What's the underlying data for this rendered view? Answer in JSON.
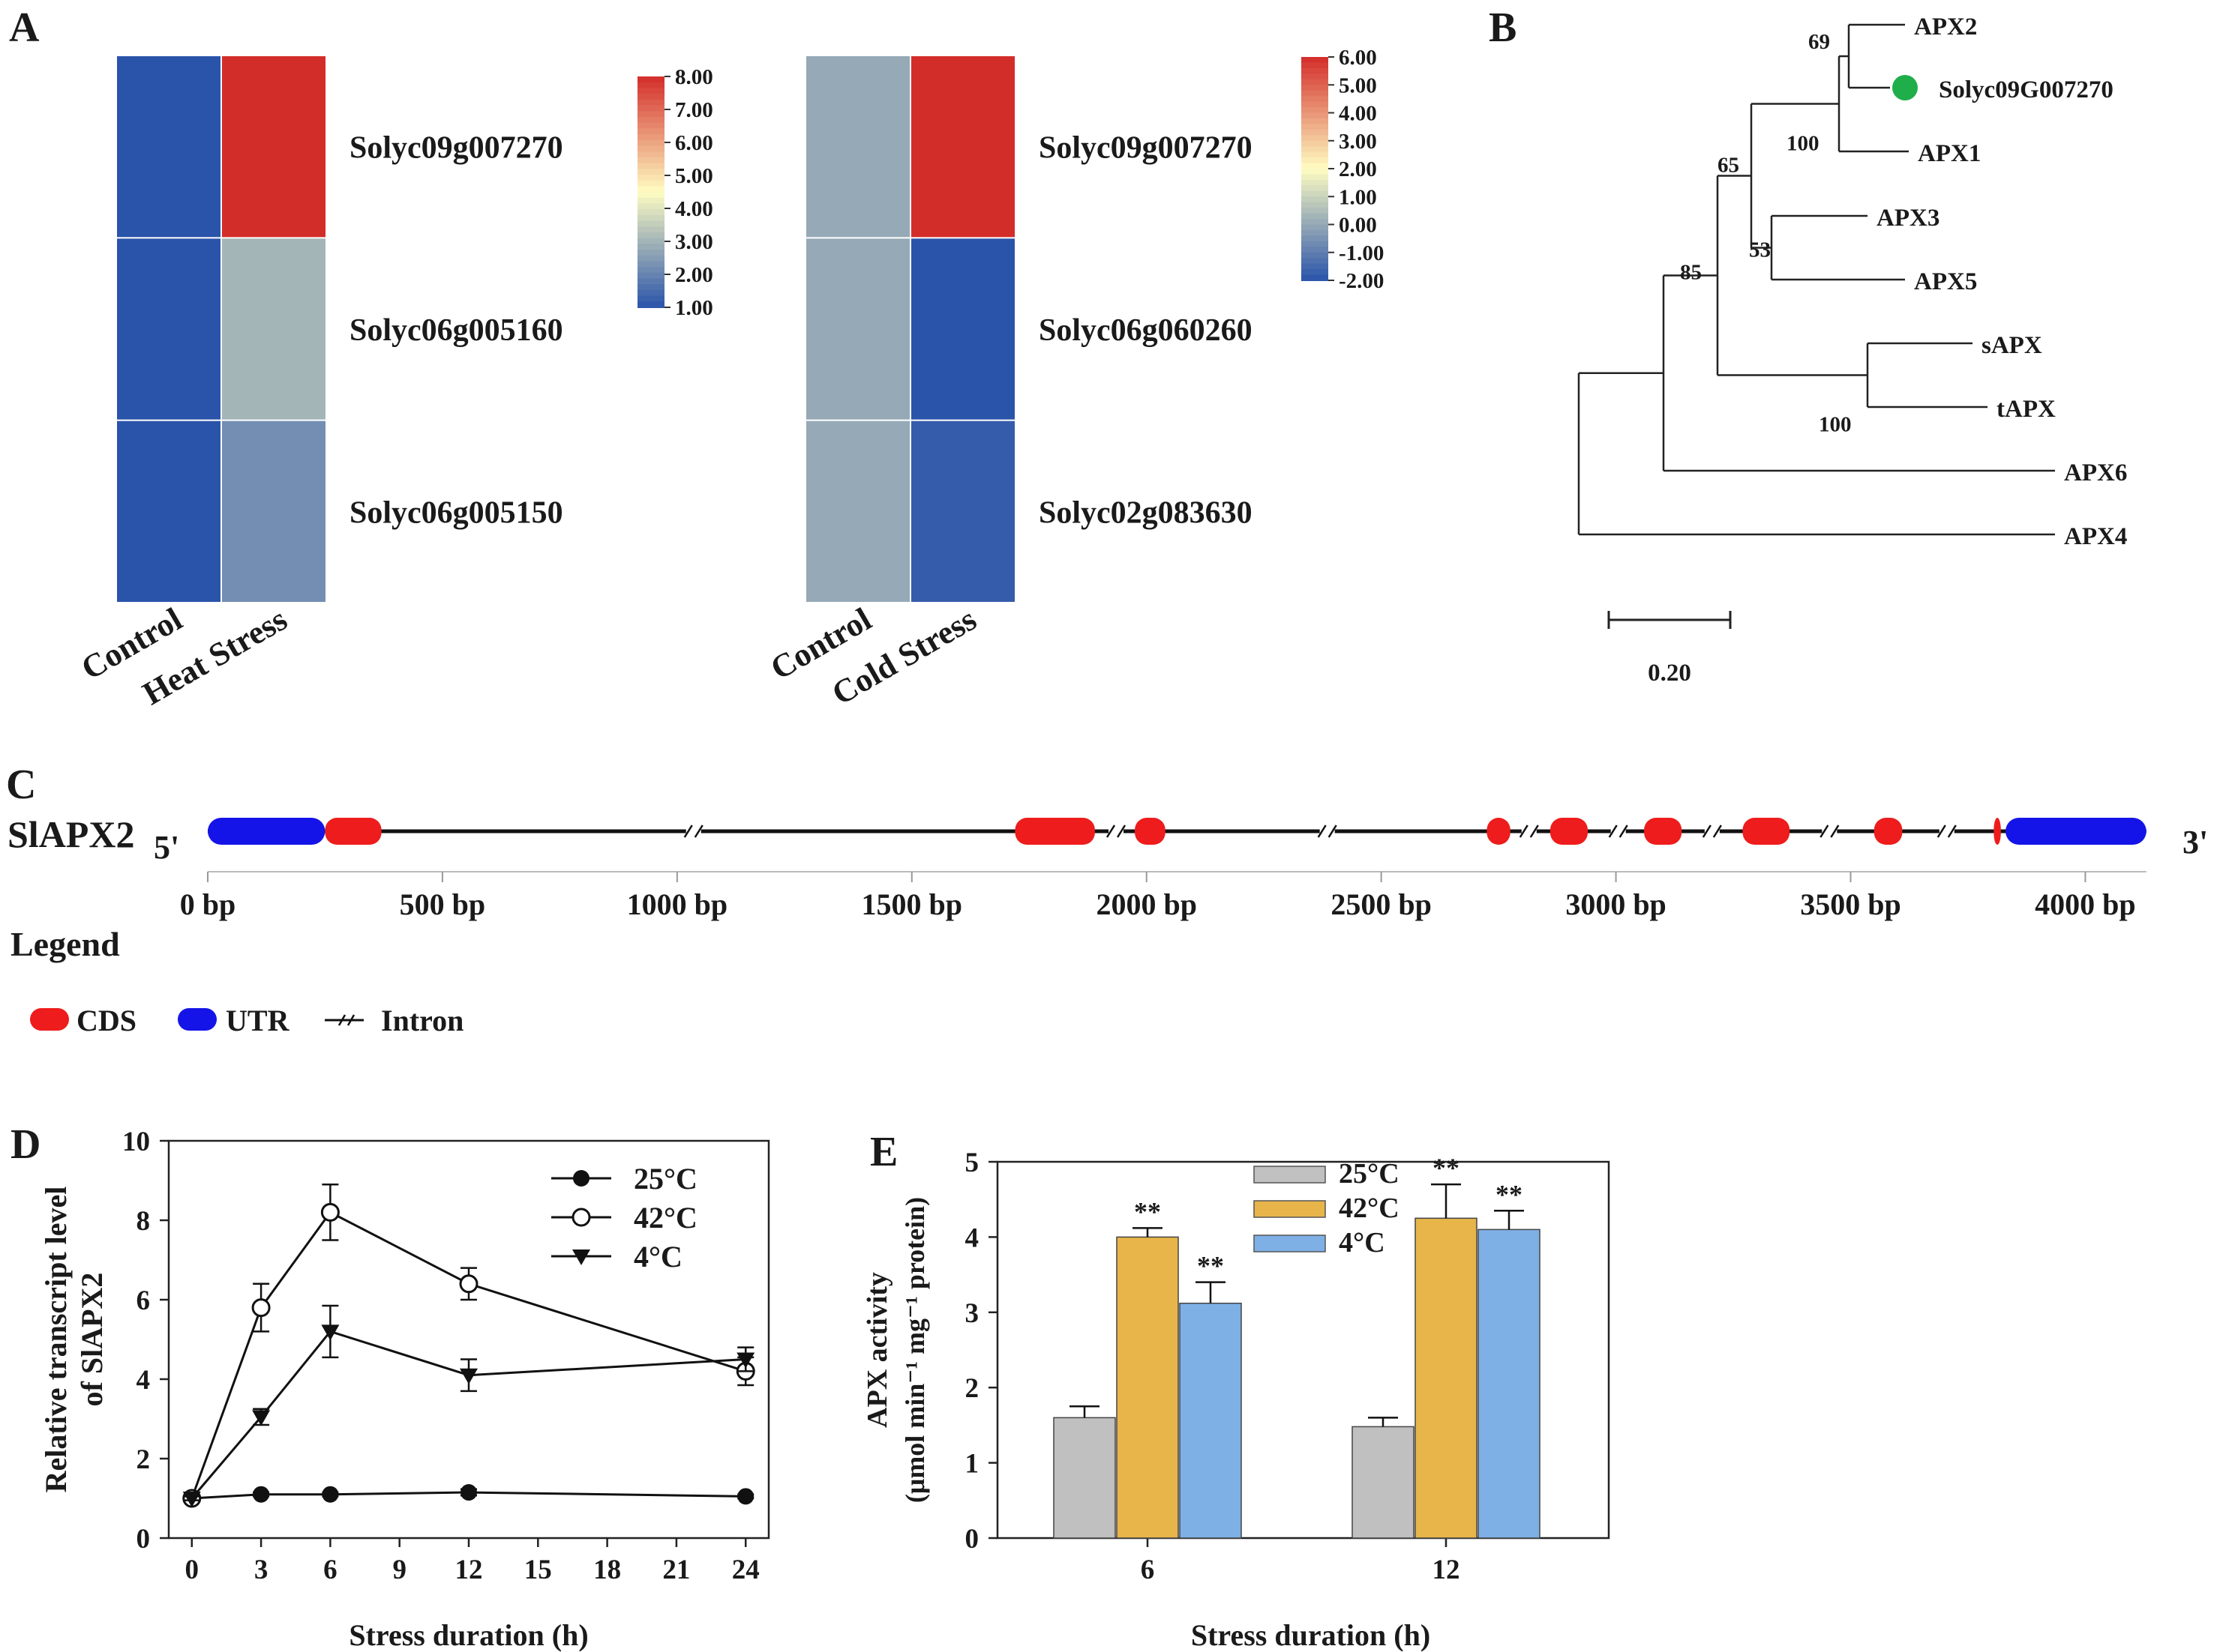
{
  "panels": {
    "A": "A",
    "B": "B",
    "C": "C",
    "D": "D",
    "E": "E"
  },
  "chart_data": [
    {
      "type": "heatmap",
      "panel": "A",
      "columns": [
        "Control",
        "Heat Stress"
      ],
      "rows": [
        "Solyc09g007270",
        "Solyc06g005160",
        "Solyc06g005150"
      ],
      "values": [
        [
          1.0,
          8.0
        ],
        [
          1.0,
          3.0
        ],
        [
          1.0,
          2.2
        ]
      ],
      "colorbar": {
        "min": 1.0,
        "max": 8.0,
        "ticks": [
          "8.00",
          "7.00",
          "6.00",
          "5.00",
          "4.00",
          "3.00",
          "2.00",
          "1.00"
        ]
      },
      "colors": {
        "low": "#2a54aa",
        "mid": "#fffdc2",
        "high": "#d32d2a"
      }
    },
    {
      "type": "heatmap",
      "panel": "A",
      "columns": [
        "Control",
        "Cold Stress"
      ],
      "rows": [
        "Solyc09g007270",
        "Solyc06g060260",
        "Solyc02g083630"
      ],
      "values": [
        [
          0.0,
          6.0
        ],
        [
          0.0,
          -2.0
        ],
        [
          0.0,
          -1.8
        ]
      ],
      "colorbar": {
        "min": -2.0,
        "max": 6.0,
        "ticks": [
          "6.00",
          "5.00",
          "4.00",
          "3.00",
          "2.00",
          "1.00",
          "0.00",
          "-1.00",
          "-2.00"
        ]
      },
      "colors": {
        "low": "#2a54aa",
        "mid": "#fffdc2",
        "high": "#d32d2a"
      }
    },
    {
      "type": "tree",
      "panel": "B",
      "leaves": [
        "APX2",
        "Solyc09G007270",
        "APX1",
        "APX3",
        "APX5",
        "sAPX",
        "tAPX",
        "APX6",
        "APX4"
      ],
      "bootstrap": [
        "69",
        "100",
        "65",
        "53",
        "85",
        "100"
      ],
      "scale_label": "0.20",
      "highlight_color": "#1fae4a"
    },
    {
      "type": "gene-structure",
      "panel": "C",
      "gene": "SlAPX2",
      "five_prime": "5'",
      "three_prime": "3'",
      "axis_ticks": [
        "0 bp",
        "500 bp",
        "1000 bp",
        "1500 bp",
        "2000 bp",
        "2500 bp",
        "3000 bp",
        "3500 bp",
        "4000 bp"
      ],
      "axis_tick_values": [
        0,
        500,
        1000,
        1500,
        2000,
        2500,
        3000,
        3500,
        4000
      ],
      "utr": [
        [
          0,
          250
        ],
        [
          3830,
          4130
        ]
      ],
      "cds": [
        [
          250,
          370
        ],
        [
          1720,
          1890
        ],
        [
          1975,
          2040
        ],
        [
          2725,
          2775
        ],
        [
          2860,
          2940
        ],
        [
          3060,
          3140
        ],
        [
          3270,
          3370
        ],
        [
          3550,
          3610
        ],
        [
          3805,
          3820
        ]
      ],
      "intron_breaks": [
        1035,
        1935,
        2385,
        2815,
        3005,
        3205,
        3455,
        3705
      ],
      "legend_title": "Legend",
      "legend": [
        "CDS",
        "UTR",
        "Intron"
      ],
      "colors": {
        "cds": "#ee1c1c",
        "utr": "#1414e8"
      }
    },
    {
      "type": "line",
      "panel": "D",
      "x": [
        0,
        3,
        6,
        12,
        24
      ],
      "series": [
        {
          "name": "25°C",
          "values": [
            1.0,
            1.1,
            1.1,
            1.15,
            1.05
          ],
          "errors": [
            0.05,
            0.05,
            0.05,
            0.08,
            0.05
          ],
          "marker": "filled-circle"
        },
        {
          "name": "42°C",
          "values": [
            1.0,
            5.8,
            8.2,
            6.4,
            4.2
          ],
          "errors": [
            0.05,
            0.6,
            0.7,
            0.4,
            0.35
          ],
          "marker": "open-circle"
        },
        {
          "name": "4°C",
          "values": [
            1.0,
            3.05,
            5.2,
            4.1,
            4.5
          ],
          "errors": [
            0.05,
            0.2,
            0.65,
            0.4,
            0.3
          ],
          "marker": "filled-triangle-down"
        }
      ],
      "xlabel": "Stress duration (h)",
      "ylabel_line1": "Relative transcript level",
      "ylabel_line2": "of SlAPX2",
      "xticks": [
        0,
        3,
        6,
        9,
        12,
        15,
        18,
        21,
        24
      ],
      "yticks": [
        0,
        2,
        4,
        6,
        8,
        10
      ],
      "xlim": [
        -1,
        25
      ],
      "ylim": [
        0,
        10
      ]
    },
    {
      "type": "bar",
      "panel": "E",
      "categories": [
        "6",
        "12"
      ],
      "series": [
        {
          "name": "25°C",
          "values": [
            1.6,
            1.48
          ],
          "errors": [
            0.15,
            0.12
          ],
          "sig": [
            "",
            ""
          ],
          "color": "#c0c0c0"
        },
        {
          "name": "42°C",
          "values": [
            4.0,
            4.25
          ],
          "errors": [
            0.12,
            0.45
          ],
          "sig": [
            "**",
            "**"
          ],
          "color": "#e7b54a"
        },
        {
          "name": "4°C",
          "values": [
            3.12,
            4.1
          ],
          "errors": [
            0.28,
            0.25
          ],
          "sig": [
            "**",
            "**"
          ],
          "color": "#7eb0e6"
        }
      ],
      "xlabel": "Stress duration (h)",
      "ylabel_line1": "APX activity",
      "ylabel_line2": "(μmol min⁻¹ mg⁻¹ protein)",
      "yticks": [
        0,
        1,
        2,
        3,
        4,
        5
      ],
      "ylim": [
        0,
        5
      ]
    }
  ]
}
